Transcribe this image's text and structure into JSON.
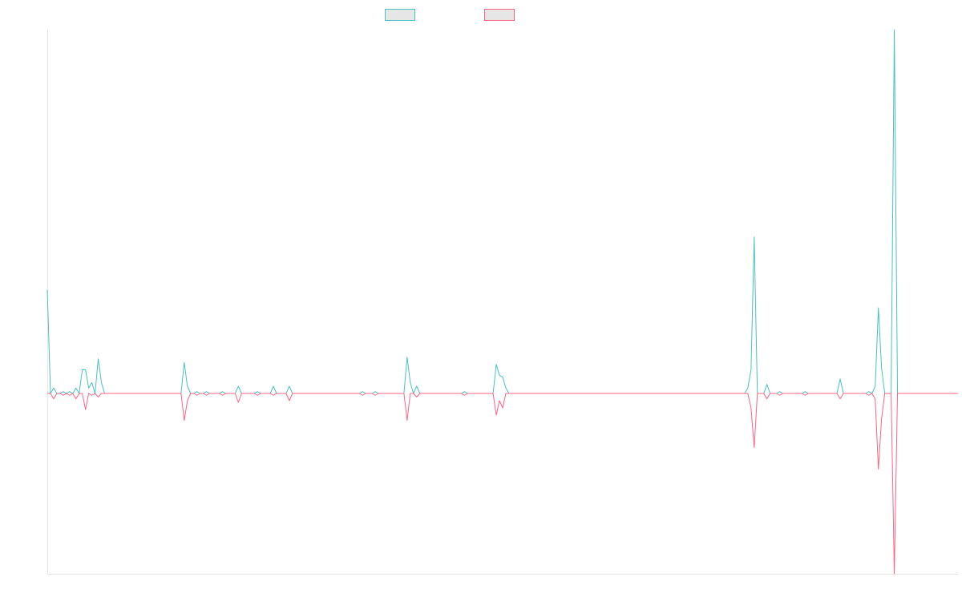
{
  "chart_data": {
    "type": "line",
    "title": "",
    "xlabel": "",
    "ylabel": "",
    "grid": false,
    "legend": "top-center",
    "ylim": [
      -100,
      100
    ],
    "x_count": 287,
    "series": [
      {
        "color": "#4bc0c0",
        "name": "",
        "baseline": 0,
        "spikes": [
          [
            0,
            57
          ],
          [
            2,
            3
          ],
          [
            5,
            1
          ],
          [
            7,
            1
          ],
          [
            9,
            3
          ],
          [
            11,
            13
          ],
          [
            12,
            13
          ],
          [
            13,
            3
          ],
          [
            14,
            6
          ],
          [
            16,
            19
          ],
          [
            17,
            6
          ],
          [
            43,
            17
          ],
          [
            44,
            4
          ],
          [
            47,
            1
          ],
          [
            50,
            1
          ],
          [
            55,
            1
          ],
          [
            60,
            4
          ],
          [
            66,
            1
          ],
          [
            71,
            4
          ],
          [
            76,
            4
          ],
          [
            99,
            1
          ],
          [
            103,
            1
          ],
          [
            113,
            20
          ],
          [
            114,
            6
          ],
          [
            116,
            4
          ],
          [
            131,
            1
          ],
          [
            141,
            16
          ],
          [
            142,
            10
          ],
          [
            143,
            9
          ],
          [
            144,
            3
          ],
          [
            220,
            3
          ],
          [
            221,
            13
          ],
          [
            222,
            86
          ],
          [
            226,
            5
          ],
          [
            230,
            1
          ],
          [
            238,
            1
          ],
          [
            249,
            8
          ],
          [
            258,
            1
          ],
          [
            260,
            4
          ],
          [
            261,
            47
          ],
          [
            262,
            14
          ],
          [
            266,
            200
          ]
        ]
      },
      {
        "color": "#ff6384",
        "name": "",
        "baseline": 0,
        "spikes": [
          [
            2,
            -3
          ],
          [
            5,
            -1
          ],
          [
            7,
            -1
          ],
          [
            9,
            -3
          ],
          [
            12,
            -9
          ],
          [
            14,
            -1
          ],
          [
            16,
            -2
          ],
          [
            43,
            -15
          ],
          [
            44,
            -4
          ],
          [
            47,
            -1
          ],
          [
            50,
            -1
          ],
          [
            55,
            -1
          ],
          [
            60,
            -5
          ],
          [
            66,
            -1
          ],
          [
            71,
            -1
          ],
          [
            76,
            -4
          ],
          [
            99,
            -1
          ],
          [
            103,
            -1
          ],
          [
            113,
            -15
          ],
          [
            116,
            -2
          ],
          [
            131,
            -1
          ],
          [
            141,
            -12
          ],
          [
            142,
            -4
          ],
          [
            143,
            -8
          ],
          [
            221,
            -8
          ],
          [
            222,
            -30
          ],
          [
            226,
            -3
          ],
          [
            230,
            -1
          ],
          [
            238,
            -1
          ],
          [
            249,
            -3
          ],
          [
            258,
            -1
          ],
          [
            260,
            -3
          ],
          [
            261,
            -42
          ],
          [
            262,
            -14
          ],
          [
            266,
            -100
          ]
        ]
      }
    ]
  }
}
